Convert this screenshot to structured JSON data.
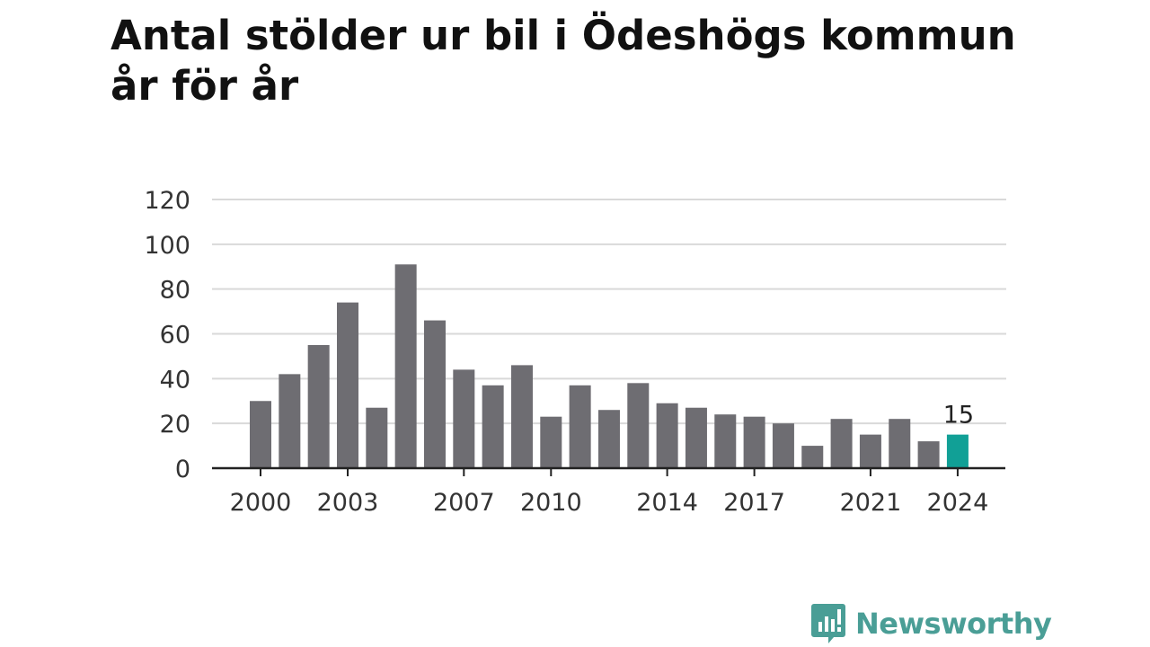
{
  "title": {
    "line1": "Antal stölder ur bil i Ödeshögs kommun",
    "line2": "år för år"
  },
  "brand": {
    "name": "Newsworthy",
    "icon": "newsworthy-logo-icon",
    "color": "#4a9e96"
  },
  "colors": {
    "bar": "#6e6d72",
    "highlight": "#11a096",
    "grid": "#d9d9d9",
    "axis": "#222222",
    "tick_text": "#333333"
  },
  "chart_data": {
    "type": "bar",
    "categories": [
      "2000",
      "2001",
      "2002",
      "2003",
      "2004",
      "2005",
      "2006",
      "2007",
      "2008",
      "2009",
      "2010",
      "2011",
      "2012",
      "2013",
      "2014",
      "2015",
      "2016",
      "2017",
      "2018",
      "2019",
      "2020",
      "2021",
      "2022",
      "2023",
      "2024"
    ],
    "values": [
      30,
      42,
      55,
      74,
      27,
      91,
      66,
      44,
      37,
      46,
      23,
      37,
      26,
      38,
      29,
      27,
      24,
      23,
      20,
      10,
      22,
      15,
      22,
      12,
      15
    ],
    "x_tick_labels": [
      "2000",
      "2003",
      "2007",
      "2010",
      "2014",
      "2017",
      "2021",
      "2024"
    ],
    "y_ticks": [
      0,
      20,
      40,
      60,
      80,
      100,
      120
    ],
    "ylim": [
      0,
      120
    ],
    "highlight_category": "2024",
    "highlight_label": "15",
    "title": "Antal stölder ur bil i Ödeshögs kommun år för år",
    "xlabel": "",
    "ylabel": "",
    "grid": true,
    "legend": "none"
  }
}
